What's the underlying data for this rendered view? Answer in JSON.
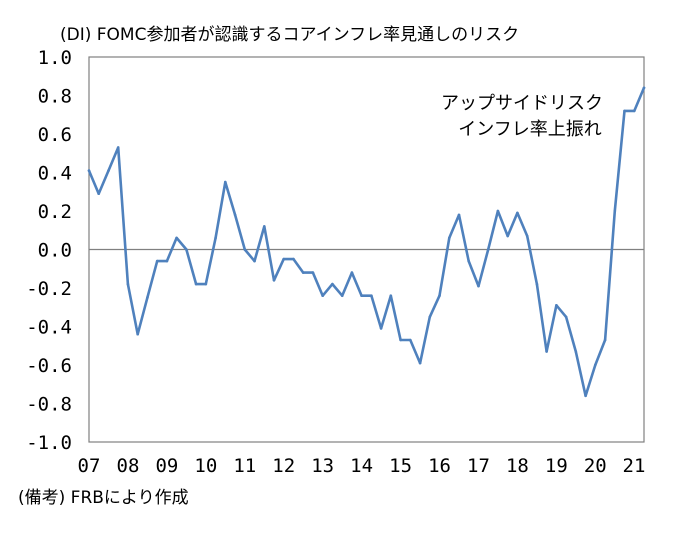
{
  "chart_data": {
    "type": "line",
    "title": "(DI)  FOMC参加者が認識するコアインフレ率見通しのリスク",
    "xlabel": "",
    "ylabel": "",
    "ylim": [
      -1.0,
      1.0
    ],
    "y_ticks": [
      "1.0",
      "0.8",
      "0.6",
      "0.4",
      "0.2",
      "0.0",
      "-0.2",
      "-0.4",
      "-0.6",
      "-0.8",
      "-1.0"
    ],
    "x_ticks": [
      "07",
      "08",
      "09",
      "10",
      "11",
      "12",
      "13",
      "14",
      "15",
      "16",
      "17",
      "18",
      "19",
      "20",
      "21"
    ],
    "x_range": [
      2007.0,
      2021.25
    ],
    "grid": false,
    "zero_line": true,
    "annotation": [
      "アップサイドリスク",
      "インフレ率上振れ"
    ],
    "note": "(備考) FRBにより作成",
    "colors": {
      "line": "#4f81bd",
      "zero_line": "#808080",
      "axis": "#808080"
    },
    "series": [
      {
        "x": [
          2007.0,
          2007.25,
          2007.5,
          2007.75,
          2008.0,
          2008.25,
          2008.5,
          2008.75,
          2009.0,
          2009.25,
          2009.5,
          2009.75,
          2010.0,
          2010.25,
          2010.5,
          2010.75,
          2011.0,
          2011.25,
          2011.5,
          2011.75,
          2012.0,
          2012.25,
          2012.5,
          2012.75,
          2013.0,
          2013.25,
          2013.5,
          2013.75,
          2014.0,
          2014.25,
          2014.5,
          2014.75,
          2015.0,
          2015.25,
          2015.5,
          2015.75,
          2016.0,
          2016.25,
          2016.5,
          2016.75,
          2017.0,
          2017.25,
          2017.5,
          2017.75,
          2018.0,
          2018.25,
          2018.5,
          2018.75,
          2019.0,
          2019.25,
          2019.5,
          2019.75,
          2020.0,
          2020.25,
          2020.5,
          2020.75,
          2021.0,
          2021.25
        ],
        "values": [
          0.41,
          0.29,
          0.41,
          0.53,
          -0.18,
          -0.44,
          -0.25,
          -0.06,
          -0.06,
          0.06,
          0.0,
          -0.18,
          -0.18,
          0.06,
          0.35,
          0.18,
          0.0,
          -0.06,
          0.12,
          -0.16,
          -0.05,
          -0.05,
          -0.12,
          -0.12,
          -0.24,
          -0.18,
          -0.24,
          -0.12,
          -0.24,
          -0.24,
          -0.41,
          -0.24,
          -0.47,
          -0.47,
          -0.59,
          -0.35,
          -0.24,
          0.06,
          0.18,
          -0.06,
          -0.19,
          0.0,
          0.2,
          0.07,
          0.19,
          0.07,
          -0.18,
          -0.53,
          -0.29,
          -0.35,
          -0.53,
          -0.76,
          -0.6,
          -0.47,
          0.2,
          0.72,
          0.72,
          0.84
        ]
      }
    ]
  }
}
